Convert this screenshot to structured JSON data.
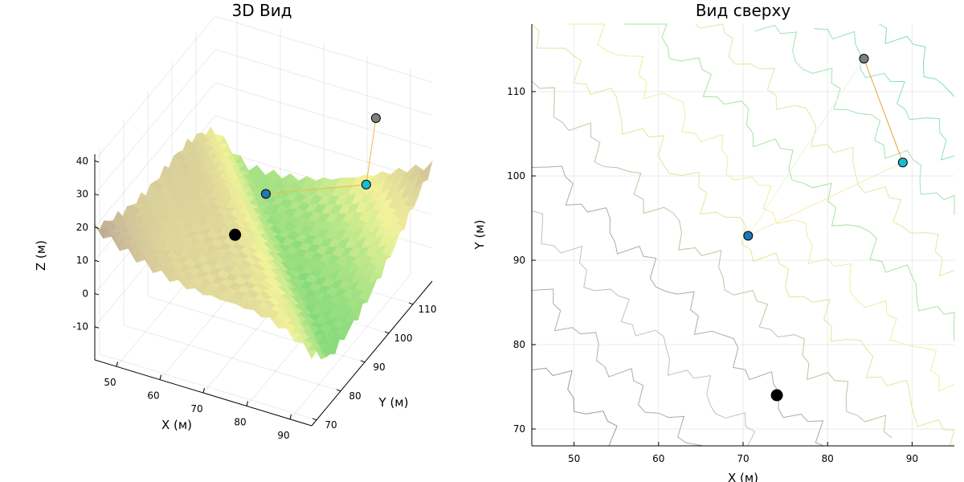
{
  "chart_data": [
    {
      "type": "surface3d",
      "title": "3D Вид",
      "xlabel": "X (м)",
      "ylabel": "Y (м)",
      "zlabel": "Z (м)",
      "xlim": [
        45,
        95
      ],
      "ylim": [
        68,
        118
      ],
      "zlim": [
        -20,
        42
      ],
      "xticks": [
        "50",
        "60",
        "70",
        "80",
        "90"
      ],
      "yticks": [
        "70",
        "80",
        "90",
        "100",
        "110"
      ],
      "zticks": [
        "40",
        "30",
        "20",
        "10",
        "0",
        "-10"
      ],
      "colormap": [
        "#2ec68c",
        "#7fd97a",
        "#f3f39a",
        "#c8b79a",
        "#8b7167",
        "#f2f0ef"
      ],
      "grid": true,
      "markers": [
        {
          "x": 74,
          "y": 74,
          "z": 24,
          "color": "#000000"
        },
        {
          "x": 70.6,
          "y": 92.9,
          "z": 18.5,
          "color": "#1f77b4"
        },
        {
          "x": 88.9,
          "y": 101.6,
          "z": 21,
          "color": "#17becf"
        },
        {
          "x": 84.3,
          "y": 113.9,
          "z": 28.5,
          "color": "#7f7f7f"
        }
      ]
    },
    {
      "type": "contour",
      "title": "Вид сверху",
      "xlabel": "X (м)",
      "ylabel": "Y (м)",
      "xlim": [
        45,
        95
      ],
      "ylim": [
        68,
        118
      ],
      "xticks": [
        50,
        60,
        70,
        80,
        90
      ],
      "yticks": [
        70,
        80,
        90,
        100,
        110
      ],
      "grid": true,
      "path": [
        {
          "x": 70.6,
          "y": 92.9
        },
        {
          "x": 88.9,
          "y": 101.6
        },
        {
          "x": 84.3,
          "y": 113.9
        }
      ],
      "markers": [
        {
          "x": 74,
          "y": 74,
          "color": "#000000"
        },
        {
          "x": 70.6,
          "y": 92.9,
          "color": "#1f77b4"
        },
        {
          "x": 88.9,
          "y": 101.6,
          "color": "#17becf"
        },
        {
          "x": 84.3,
          "y": 113.9,
          "color": "#7f7f7f"
        }
      ]
    }
  ]
}
